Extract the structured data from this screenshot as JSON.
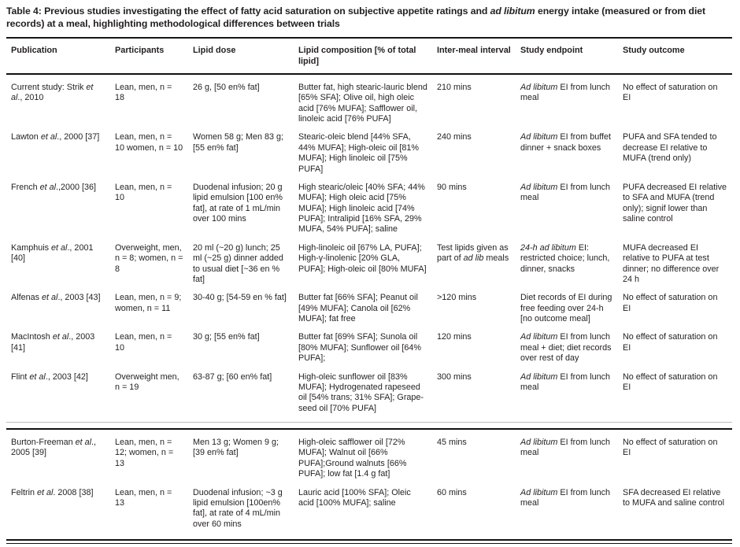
{
  "title": "Table 4: Previous studies investigating the effect of fatty acid saturation on subjective appetite ratings and *ad libitum* energy intake (measured or from diet records) at a meal, highlighting methodological differences between trials",
  "table": {
    "columns": [
      "Publication",
      "Participants",
      "Lipid dose",
      "Lipid composition [% of total lipid]",
      "Inter-meal interval",
      "Study endpoint",
      "Study outcome"
    ],
    "sections": [
      {
        "rows": [
          {
            "cells": [
              "Current study: Strik *et al*., 2010",
              "Lean, men, n = 18",
              "26 g, [50 en% fat]",
              "Butter fat, high stearic-lauric blend [65% SFA]; Olive oil, high oleic acid [76% MUFA]; Safflower oil, linoleic acid [76% PUFA]",
              "210 mins",
              "*Ad libitum* EI from lunch meal",
              "No effect of saturation on EI"
            ]
          },
          {
            "cells": [
              "Lawton *et al*., 2000 [37]",
              "Lean, men, n = 10 women, n = 10",
              "Women 58 g; Men 83 g; [55 en% fat]",
              "Stearic-oleic blend [44% SFA, 44% MUFA]; High-oleic oil [81% MUFA]; High linoleic oil [75% PUFA]",
              "240 mins",
              "*Ad libitum* EI from buffet dinner + snack boxes",
              "PUFA and SFA tended to decrease EI relative to MUFA (trend only)"
            ]
          },
          {
            "cells": [
              "French *et al*.,2000 [36]",
              "Lean, men, n = 10",
              "Duodenal infusion; 20 g lipid emulsion [100 en% fat], at rate of 1 mL/min over 100 mins",
              "High stearic/oleic [40% SFA; 44% MUFA]; High oleic acid [75% MUFA]; High linoleic acid [74% PUFA]; Intralipid [16% SFA, 29% MUFA, 54% PUFA]; saline",
              "90 mins",
              "*Ad libitum* EI from lunch meal",
              "PUFA decreased EI relative to SFA and MUFA (trend only); signif lower than saline control"
            ]
          },
          {
            "cells": [
              "Kamphuis *et al*., 2001 [40]",
              "Overweight, men, n = 8; women, n = 8",
              "20 ml (~20 g) lunch; 25 ml (~25 g) dinner added to usual diet [~36 en % fat]",
              "High-linoleic oil [67% LA, PUFA]; High-γ-linolenic [20% GLA, PUFA]; High-oleic oil [80% MUFA]",
              "Test lipids given as part of *ad lib* meals",
              "*24-h ad libitum* EI: restricted choice; lunch, dinner, snacks",
              "MUFA decreased EI relative to PUFA at test dinner; no difference over 24 h"
            ]
          },
          {
            "cells": [
              "Alfenas *et al*., 2003 [43]",
              "Lean, men, n = 9; women, n = 11",
              "30-40 g; [54-59 en % fat]",
              "Butter fat [66% SFA]; Peanut oil [49% MUFA]; Canola oil [62% MUFA]; fat free",
              ">120 mins",
              "Diet records of EI during free feeding over 24-h [no outcome meal]",
              "No effect of saturation on EI"
            ]
          },
          {
            "cells": [
              "MacIntosh *et al*., 2003 [41]",
              "Lean, men, n = 10",
              "30 g; [55 en% fat]",
              "Butter fat [69% SFA]; Sunola oil [80% MUFA]; Sunflower oil [64% PUFA];",
              "120 mins",
              "*Ad libitum* EI from lunch meal + diet; diet records over rest of day",
              "No effect of saturation on EI"
            ]
          },
          {
            "cells": [
              "Flint *et al*., 2003 [42]",
              "Overweight men, n = 19",
              "63-87 g; [60 en% fat]",
              "High-oleic sunflower oil [83% MUFA]; Hydrogenated rapeseed oil [54% trans; 31% SFA]; Grape- seed oil [70% PUFA]",
              "300 mins",
              "*Ad libitum* EI from lunch meal",
              "No effect of saturation on EI"
            ]
          }
        ]
      },
      {
        "rows": [
          {
            "cells": [
              "Burton-Freeman *et al*., 2005 [39]",
              "Lean, men, n = 12; women, n = 13",
              "Men 13 g; Women 9 g; [39 en% fat]",
              "High-oleic safflower oil [72% MUFA]; Walnut oil [66% PUFA];Ground walnuts [66% PUFA]; low fat [1.4 g fat]",
              "45 mins",
              "*Ad libitum* EI from lunch meal",
              "No effect of saturation on EI"
            ]
          },
          {
            "cells": [
              "Feltrin *et al*. 2008 [38]",
              "Lean, men, n = 13",
              "Duodenal infusion; ~3 g lipid emulsion [100en% fat], at rate of 4 mL/min over 60 mins",
              "Lauric acid [100% SFA]; Oleic acid [100% MUFA]; saline",
              "60 mins",
              "*Ad libitum* EI from lunch meal",
              "SFA decreased EI relative to MUFA and saline control"
            ]
          }
        ]
      }
    ]
  }
}
